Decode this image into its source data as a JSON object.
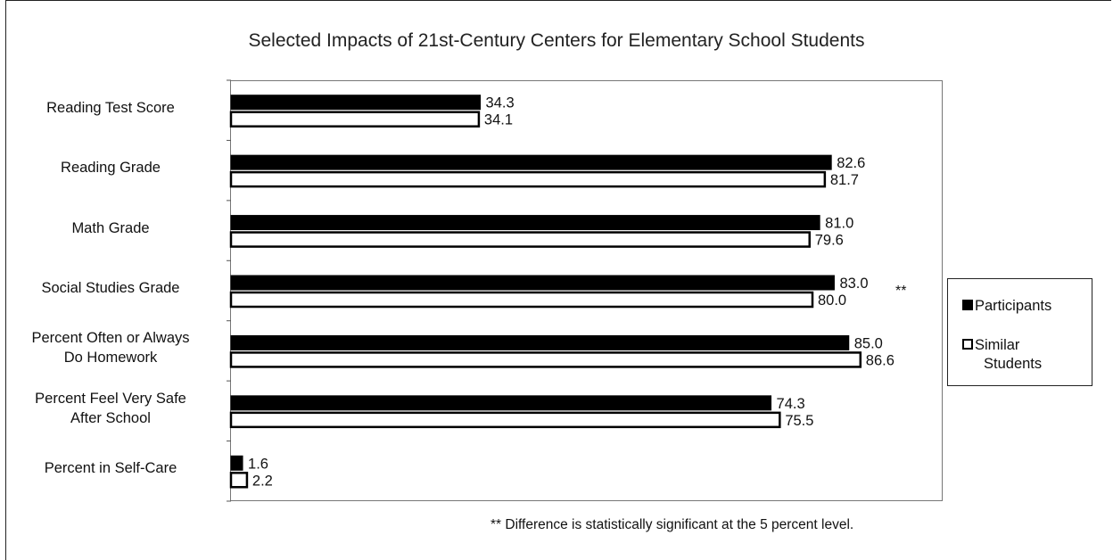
{
  "chart_data": {
    "type": "bar",
    "orientation": "horizontal",
    "title": "Selected Impacts of 21st-Century Centers for Elementary School Students",
    "categories": [
      "Reading Test Score",
      "Reading Grade",
      "Math Grade",
      "Social Studies Grade",
      "Percent Often or Always Do Homework",
      "Percent Feel Very Safe After School",
      "Percent in Self-Care"
    ],
    "category_lines": [
      [
        "Reading Test Score"
      ],
      [
        "Reading Grade"
      ],
      [
        "Math Grade"
      ],
      [
        "Social Studies Grade"
      ],
      [
        "Percent Often or Always",
        "Do Homework"
      ],
      [
        "Percent Feel Very Safe",
        "After School"
      ],
      [
        "Percent in Self-Care"
      ]
    ],
    "series": [
      {
        "name": "Participants",
        "color": "#000000",
        "fill": "solid",
        "values": [
          34.3,
          82.6,
          81.0,
          83.0,
          85.0,
          74.3,
          1.6
        ],
        "labels": [
          "34.3",
          "82.6",
          "81.0",
          "83.0",
          "85.0",
          "74.3",
          "1.6"
        ]
      },
      {
        "name": "Similar Students",
        "color": "#ffffff",
        "fill": "outline",
        "values": [
          34.1,
          81.7,
          79.6,
          80.0,
          86.6,
          75.5,
          2.2
        ],
        "labels": [
          "34.1",
          "81.7",
          "79.6",
          "80.0",
          "86.6",
          "75.5",
          "2.2"
        ]
      }
    ],
    "xlim": [
      0,
      100
    ],
    "grid": false,
    "legend": {
      "position": "right",
      "items": [
        "Participants",
        "Similar Students"
      ]
    },
    "annotations": {
      "significance_marker": "**",
      "footnote": "** Difference is statistically significant at the 5 percent level."
    }
  }
}
